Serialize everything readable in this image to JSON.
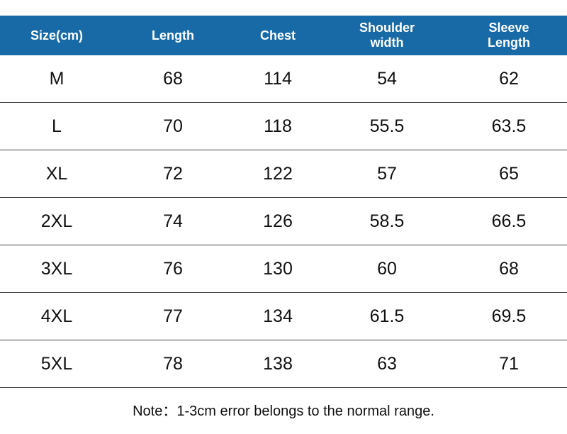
{
  "table": {
    "header": [
      "Size(cm)",
      "Length",
      "Chest",
      "Shoulder width",
      "Sleeve Length"
    ],
    "rows": [
      [
        "M",
        "68",
        "114",
        "54",
        "62"
      ],
      [
        "L",
        "70",
        "118",
        "55.5",
        "63.5"
      ],
      [
        "XL",
        "72",
        "122",
        "57",
        "65"
      ],
      [
        "2XL",
        "74",
        "126",
        "58.5",
        "66.5"
      ],
      [
        "3XL",
        "76",
        "130",
        "60",
        "68"
      ],
      [
        "4XL",
        "77",
        "134",
        "61.5",
        "69.5"
      ],
      [
        "5XL",
        "78",
        "138",
        "63",
        "71"
      ]
    ]
  },
  "note": "Note：1-3cm error belongs to the normal range."
}
